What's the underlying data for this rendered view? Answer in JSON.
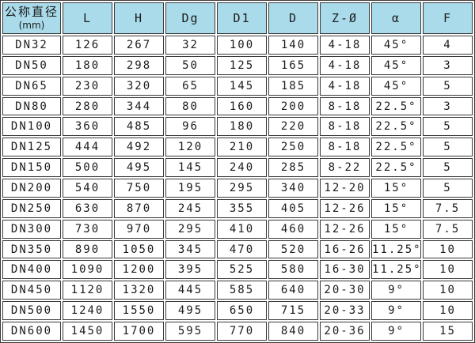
{
  "colors": {
    "header_bg": "#a9dbea",
    "border": "#3a3a3a",
    "cell_bg": "#ffffff",
    "text": "#1b1b1b"
  },
  "chart_data": {
    "type": "table",
    "title": "",
    "header": {
      "diameter_label": "公称直径",
      "diameter_unit": "(mm)",
      "columns": [
        "L",
        "H",
        "Dg",
        "D1",
        "D",
        "Z-Ø",
        "α",
        "F"
      ]
    },
    "rows": [
      {
        "dn": "DN32",
        "values": [
          "126",
          "267",
          "32",
          "100",
          "140",
          "4-18",
          "45°",
          "4"
        ]
      },
      {
        "dn": "DN50",
        "values": [
          "180",
          "298",
          "50",
          "125",
          "165",
          "4-18",
          "45°",
          "3"
        ]
      },
      {
        "dn": "DN65",
        "values": [
          "230",
          "320",
          "65",
          "145",
          "185",
          "4-18",
          "45°",
          "5"
        ]
      },
      {
        "dn": "DN80",
        "values": [
          "280",
          "344",
          "80",
          "160",
          "200",
          "8-18",
          "22.5°",
          "3"
        ]
      },
      {
        "dn": "DN100",
        "values": [
          "360",
          "485",
          "96",
          "180",
          "220",
          "8-18",
          "22.5°",
          "5"
        ]
      },
      {
        "dn": "DN125",
        "values": [
          "444",
          "492",
          "120",
          "210",
          "250",
          "8-18",
          "22.5°",
          "5"
        ]
      },
      {
        "dn": "DN150",
        "values": [
          "500",
          "495",
          "145",
          "240",
          "285",
          "8-22",
          "22.5°",
          "5"
        ]
      },
      {
        "dn": "DN200",
        "values": [
          "540",
          "750",
          "195",
          "295",
          "340",
          "12-20",
          "15°",
          "5"
        ]
      },
      {
        "dn": "DN250",
        "values": [
          "630",
          "870",
          "245",
          "355",
          "405",
          "12-26",
          "15°",
          "7.5"
        ]
      },
      {
        "dn": "DN300",
        "values": [
          "730",
          "970",
          "295",
          "410",
          "460",
          "12-26",
          "15°",
          "7.5"
        ]
      },
      {
        "dn": "DN350",
        "values": [
          "890",
          "1050",
          "345",
          "470",
          "520",
          "16-26",
          "11.25°",
          "10"
        ]
      },
      {
        "dn": "DN400",
        "values": [
          "1090",
          "1200",
          "395",
          "525",
          "580",
          "16-30",
          "11.25°",
          "10"
        ]
      },
      {
        "dn": "DN450",
        "values": [
          "1120",
          "1320",
          "445",
          "585",
          "640",
          "20-30",
          "9°",
          "10"
        ]
      },
      {
        "dn": "DN500",
        "values": [
          "1240",
          "1550",
          "495",
          "650",
          "715",
          "20-33",
          "9°",
          "10"
        ]
      },
      {
        "dn": "DN600",
        "values": [
          "1450",
          "1700",
          "595",
          "770",
          "840",
          "20-36",
          "9°",
          "15"
        ]
      }
    ]
  }
}
